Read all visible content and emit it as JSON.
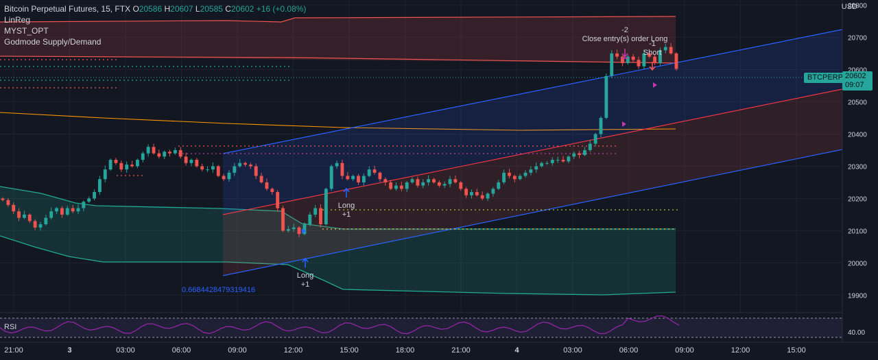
{
  "legend": {
    "symbol": "Bitcoin Perpetual Futures, 15, FTX",
    "o_label": "O",
    "o": "20586",
    "h_label": "H",
    "h": "20607",
    "l_label": "L",
    "l": "20585",
    "c_label": "C",
    "c": "20602",
    "change": "+16 (+0.08%)",
    "indicators": [
      "LinReg",
      "MYST_OPT",
      "Godmode Supply/Demand"
    ]
  },
  "axis": {
    "currency": "USD",
    "ticker": "BTCPERP",
    "last_price": "20602",
    "countdown": "09:07",
    "rsi_level": "40.00"
  },
  "rsi_label": "RSI",
  "chart_data": {
    "type": "candlestick",
    "y_ticks": [
      20800,
      20700,
      20600,
      20500,
      20400,
      20300,
      20200,
      20100,
      20000,
      19900
    ],
    "ylim": [
      19850,
      20820
    ],
    "x_ticks": [
      "21:00",
      "3",
      "03:00",
      "06:00",
      "09:00",
      "12:00",
      "15:00",
      "18:00",
      "21:00",
      "4",
      "03:00",
      "06:00",
      "09:00",
      "12:00",
      "15:00"
    ],
    "colors": {
      "up": "#26a69a",
      "down": "#ef5350",
      "regression_upper": "#2962ff",
      "regression_mid": "#f23645",
      "ma_orange": "#ff9800",
      "ma_green": "#22ab94",
      "rsi": "#9c27b0"
    },
    "annotations": [
      {
        "text": "Long",
        "sub": "+1"
      },
      {
        "text": "Long",
        "sub": "+1"
      },
      {
        "text": "Short",
        "sub": "-1"
      },
      {
        "text": "Close entry(s) order Long",
        "sub": "-2"
      },
      {
        "text": "0.6684428479319416"
      }
    ],
    "closes": [
      20195,
      20180,
      20160,
      20140,
      20150,
      20130,
      20110,
      20120,
      20140,
      20160,
      20170,
      20150,
      20170,
      20160,
      20170,
      20190,
      20200,
      20220,
      20260,
      20290,
      20320,
      20310,
      20290,
      20305,
      20300,
      20320,
      20340,
      20360,
      20340,
      20330,
      20345,
      20340,
      20350,
      20330,
      20310,
      20320,
      20300,
      20290,
      20290,
      20300,
      20270,
      20260,
      20280,
      20300,
      20310,
      20305,
      20300,
      20270,
      20250,
      20230,
      20220,
      20170,
      20100,
      20105,
      20110,
      20090,
      20120,
      20150,
      20170,
      20120,
      20230,
      20300,
      20310,
      20270,
      20260,
      20270,
      20250,
      20270,
      20290,
      20280,
      20260,
      20250,
      20230,
      20240,
      20230,
      20250,
      20260,
      20240,
      20250,
      20260,
      20250,
      20240,
      20245,
      20260,
      20250,
      20230,
      20210,
      20220,
      20210,
      20200,
      20215,
      20230,
      20250,
      20280,
      20270,
      20260,
      20270,
      20280,
      20290,
      20300,
      20310,
      20310,
      20320,
      20320,
      20315,
      20330,
      20340,
      20335,
      20350,
      20370,
      20400,
      20450,
      20580,
      20650,
      20640,
      20620,
      20640,
      20630,
      20610,
      20650,
      20640,
      20620,
      20660,
      20670,
      20650,
      20602
    ]
  }
}
